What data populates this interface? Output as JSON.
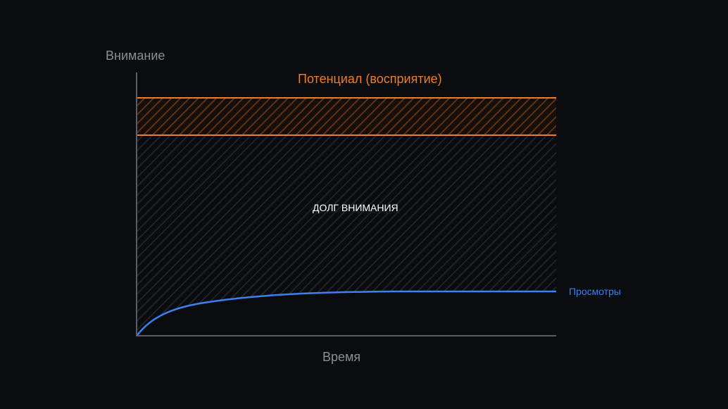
{
  "chart_data": {
    "type": "area",
    "ylabel": "Внимание",
    "xlabel": "Время",
    "potential_label": "Потенциал (восприятие)",
    "debt_label": "ДОЛГ ВНИМАНИЯ",
    "series": [
      {
        "name": "Просмотры"
      }
    ]
  },
  "colors": {
    "background": "#0b0c10",
    "axis": "#5a5e66",
    "potential": "#f07d2e",
    "views": "#3f80f0",
    "axis_text": "#8a8e96",
    "debt_text": "#ffffff"
  }
}
